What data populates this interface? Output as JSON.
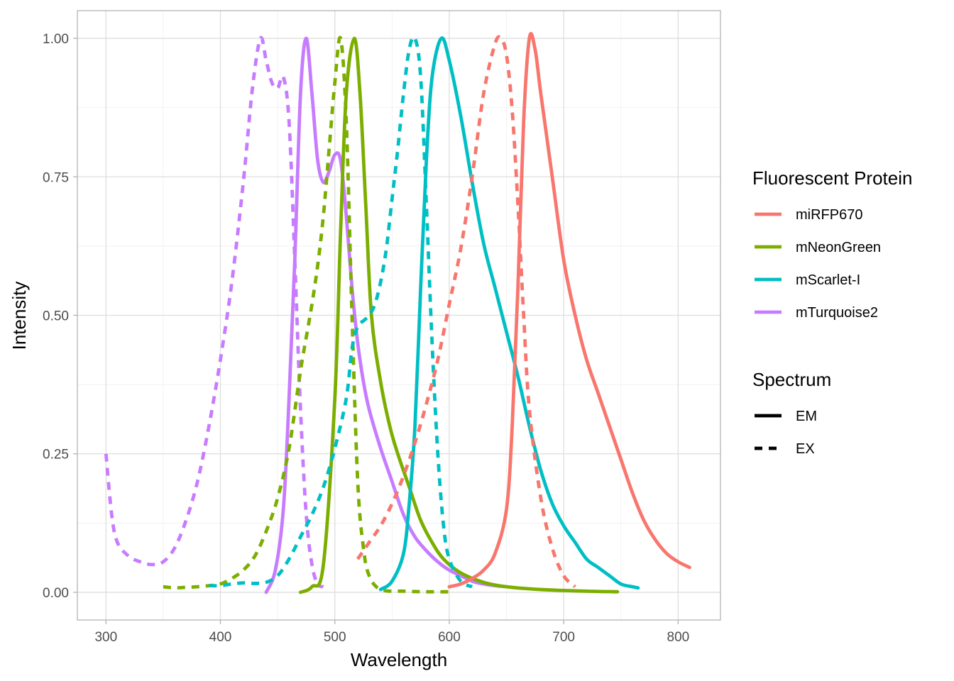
{
  "chart_data": {
    "type": "line",
    "xlabel": "Wavelength",
    "ylabel": "Intensity",
    "xlim": [
      275,
      837
    ],
    "ylim": [
      -0.05,
      1.05
    ],
    "xticks": [
      300,
      400,
      500,
      600,
      700,
      800
    ],
    "xtick_labels": [
      "300",
      "400",
      "500",
      "600",
      "700",
      "800"
    ],
    "yticks": [
      0,
      0.25,
      0.5,
      0.75,
      1
    ],
    "ytick_labels": [
      "0.00",
      "0.25",
      "0.50",
      "0.75",
      "1.00"
    ],
    "grid": true,
    "legend_position": "right",
    "legend": {
      "color_title": "Fluorescent Protein",
      "linetype_title": "Spectrum",
      "colors": [
        {
          "name": "miRFP670",
          "color": "#F8766D"
        },
        {
          "name": "mNeonGreen",
          "color": "#7CAE00"
        },
        {
          "name": "mScarlet-I",
          "color": "#00BFC4"
        },
        {
          "name": "mTurquoise2",
          "color": "#C77CFF"
        }
      ],
      "linetypes": [
        {
          "name": "EM",
          "dash": "solid"
        },
        {
          "name": "EX",
          "dash": "dashed"
        }
      ]
    },
    "series": [
      {
        "protein": "mTurquoise2",
        "spectrum": "EX",
        "color": "#C77CFF",
        "points": [
          [
            300,
            0.25
          ],
          [
            305,
            0.14
          ],
          [
            310,
            0.09
          ],
          [
            320,
            0.065
          ],
          [
            330,
            0.055
          ],
          [
            340,
            0.05
          ],
          [
            350,
            0.055
          ],
          [
            360,
            0.08
          ],
          [
            370,
            0.13
          ],
          [
            380,
            0.2
          ],
          [
            390,
            0.3
          ],
          [
            400,
            0.42
          ],
          [
            410,
            0.56
          ],
          [
            420,
            0.74
          ],
          [
            428,
            0.91
          ],
          [
            435,
            1.0
          ],
          [
            440,
            0.96
          ],
          [
            445,
            0.92
          ],
          [
            450,
            0.91
          ],
          [
            455,
            0.93
          ],
          [
            460,
            0.85
          ],
          [
            465,
            0.6
          ],
          [
            470,
            0.33
          ],
          [
            475,
            0.14
          ],
          [
            480,
            0.05
          ],
          [
            485,
            0.015
          ],
          [
            490,
            0.01
          ]
        ]
      },
      {
        "protein": "mTurquoise2",
        "spectrum": "EM",
        "color": "#C77CFF",
        "points": [
          [
            440,
            0.0
          ],
          [
            448,
            0.04
          ],
          [
            455,
            0.15
          ],
          [
            460,
            0.35
          ],
          [
            465,
            0.6
          ],
          [
            470,
            0.9
          ],
          [
            475,
            1.0
          ],
          [
            480,
            0.9
          ],
          [
            485,
            0.78
          ],
          [
            490,
            0.74
          ],
          [
            495,
            0.76
          ],
          [
            500,
            0.79
          ],
          [
            505,
            0.78
          ],
          [
            510,
            0.68
          ],
          [
            515,
            0.55
          ],
          [
            520,
            0.45
          ],
          [
            525,
            0.38
          ],
          [
            530,
            0.33
          ],
          [
            540,
            0.26
          ],
          [
            550,
            0.2
          ],
          [
            560,
            0.14
          ],
          [
            570,
            0.1
          ],
          [
            580,
            0.075
          ],
          [
            590,
            0.055
          ],
          [
            600,
            0.04
          ],
          [
            610,
            0.03
          ],
          [
            620,
            0.02
          ],
          [
            630,
            0.015
          ],
          [
            640,
            0.012
          ],
          [
            650,
            0.01
          ]
        ]
      },
      {
        "protein": "mNeonGreen",
        "spectrum": "EX",
        "color": "#7CAE00",
        "points": [
          [
            350,
            0.01
          ],
          [
            360,
            0.008
          ],
          [
            370,
            0.009
          ],
          [
            380,
            0.01
          ],
          [
            390,
            0.012
          ],
          [
            400,
            0.015
          ],
          [
            410,
            0.025
          ],
          [
            420,
            0.04
          ],
          [
            430,
            0.065
          ],
          [
            440,
            0.11
          ],
          [
            450,
            0.17
          ],
          [
            460,
            0.26
          ],
          [
            470,
            0.4
          ],
          [
            475,
            0.46
          ],
          [
            480,
            0.52
          ],
          [
            485,
            0.59
          ],
          [
            490,
            0.68
          ],
          [
            495,
            0.8
          ],
          [
            500,
            0.92
          ],
          [
            505,
            1.0
          ],
          [
            510,
            0.85
          ],
          [
            515,
            0.5
          ],
          [
            520,
            0.2
          ],
          [
            525,
            0.08
          ],
          [
            530,
            0.03
          ],
          [
            540,
            0.005
          ],
          [
            560,
            0.002
          ],
          [
            580,
            0.001
          ],
          [
            600,
            0.001
          ]
        ]
      },
      {
        "protein": "mNeonGreen",
        "spectrum": "EM",
        "color": "#7CAE00",
        "points": [
          [
            470,
            0.0
          ],
          [
            480,
            0.01
          ],
          [
            490,
            0.05
          ],
          [
            500,
            0.35
          ],
          [
            505,
            0.65
          ],
          [
            510,
            0.9
          ],
          [
            517,
            1.0
          ],
          [
            522,
            0.9
          ],
          [
            527,
            0.7
          ],
          [
            532,
            0.5
          ],
          [
            540,
            0.38
          ],
          [
            548,
            0.3
          ],
          [
            555,
            0.25
          ],
          [
            565,
            0.19
          ],
          [
            575,
            0.13
          ],
          [
            585,
            0.09
          ],
          [
            595,
            0.06
          ],
          [
            610,
            0.035
          ],
          [
            630,
            0.018
          ],
          [
            650,
            0.01
          ],
          [
            680,
            0.005
          ],
          [
            720,
            0.002
          ],
          [
            747,
            0.001
          ]
        ]
      },
      {
        "protein": "mScarlet-I",
        "spectrum": "EX",
        "color": "#00BFC4",
        "points": [
          [
            390,
            0.012
          ],
          [
            400,
            0.012
          ],
          [
            410,
            0.015
          ],
          [
            420,
            0.017
          ],
          [
            430,
            0.016
          ],
          [
            440,
            0.018
          ],
          [
            450,
            0.03
          ],
          [
            460,
            0.06
          ],
          [
            470,
            0.1
          ],
          [
            480,
            0.14
          ],
          [
            490,
            0.19
          ],
          [
            500,
            0.26
          ],
          [
            510,
            0.35
          ],
          [
            515,
            0.44
          ],
          [
            520,
            0.48
          ],
          [
            525,
            0.49
          ],
          [
            530,
            0.5
          ],
          [
            535,
            0.52
          ],
          [
            540,
            0.56
          ],
          [
            545,
            0.62
          ],
          [
            550,
            0.71
          ],
          [
            555,
            0.8
          ],
          [
            560,
            0.9
          ],
          [
            565,
            0.98
          ],
          [
            570,
            1.0
          ],
          [
            575,
            0.93
          ],
          [
            580,
            0.7
          ],
          [
            585,
            0.45
          ],
          [
            590,
            0.25
          ],
          [
            595,
            0.12
          ],
          [
            600,
            0.06
          ],
          [
            610,
            0.02
          ],
          [
            620,
            0.01
          ]
        ]
      },
      {
        "protein": "mScarlet-I",
        "spectrum": "EM",
        "color": "#00BFC4",
        "points": [
          [
            540,
            0.005
          ],
          [
            550,
            0.02
          ],
          [
            560,
            0.07
          ],
          [
            565,
            0.16
          ],
          [
            570,
            0.3
          ],
          [
            575,
            0.55
          ],
          [
            580,
            0.78
          ],
          [
            585,
            0.93
          ],
          [
            593,
            1.0
          ],
          [
            600,
            0.96
          ],
          [
            610,
            0.86
          ],
          [
            620,
            0.74
          ],
          [
            630,
            0.63
          ],
          [
            640,
            0.55
          ],
          [
            650,
            0.47
          ],
          [
            660,
            0.39
          ],
          [
            670,
            0.3
          ],
          [
            680,
            0.22
          ],
          [
            690,
            0.16
          ],
          [
            700,
            0.12
          ],
          [
            710,
            0.09
          ],
          [
            720,
            0.06
          ],
          [
            730,
            0.045
          ],
          [
            740,
            0.03
          ],
          [
            750,
            0.015
          ],
          [
            760,
            0.01
          ],
          [
            765,
            0.008
          ]
        ]
      },
      {
        "protein": "miRFP670",
        "spectrum": "EX",
        "color": "#F8766D",
        "points": [
          [
            520,
            0.06
          ],
          [
            530,
            0.09
          ],
          [
            540,
            0.12
          ],
          [
            550,
            0.16
          ],
          [
            560,
            0.21
          ],
          [
            570,
            0.27
          ],
          [
            580,
            0.34
          ],
          [
            590,
            0.42
          ],
          [
            600,
            0.52
          ],
          [
            610,
            0.62
          ],
          [
            620,
            0.75
          ],
          [
            630,
            0.9
          ],
          [
            640,
            0.99
          ],
          [
            645,
            1.0
          ],
          [
            650,
            0.97
          ],
          [
            655,
            0.87
          ],
          [
            660,
            0.7
          ],
          [
            665,
            0.5
          ],
          [
            670,
            0.33
          ],
          [
            680,
            0.17
          ],
          [
            690,
            0.08
          ],
          [
            700,
            0.03
          ],
          [
            710,
            0.01
          ]
        ]
      },
      {
        "protein": "miRFP670",
        "spectrum": "EM",
        "color": "#F8766D",
        "points": [
          [
            600,
            0.01
          ],
          [
            610,
            0.015
          ],
          [
            620,
            0.025
          ],
          [
            630,
            0.04
          ],
          [
            640,
            0.07
          ],
          [
            650,
            0.15
          ],
          [
            655,
            0.3
          ],
          [
            660,
            0.55
          ],
          [
            665,
            0.85
          ],
          [
            670,
            1.0
          ],
          [
            675,
            0.98
          ],
          [
            680,
            0.9
          ],
          [
            690,
            0.75
          ],
          [
            700,
            0.6
          ],
          [
            710,
            0.5
          ],
          [
            720,
            0.42
          ],
          [
            730,
            0.36
          ],
          [
            740,
            0.3
          ],
          [
            750,
            0.24
          ],
          [
            760,
            0.18
          ],
          [
            770,
            0.13
          ],
          [
            780,
            0.095
          ],
          [
            790,
            0.07
          ],
          [
            800,
            0.055
          ],
          [
            810,
            0.045
          ]
        ]
      }
    ]
  }
}
